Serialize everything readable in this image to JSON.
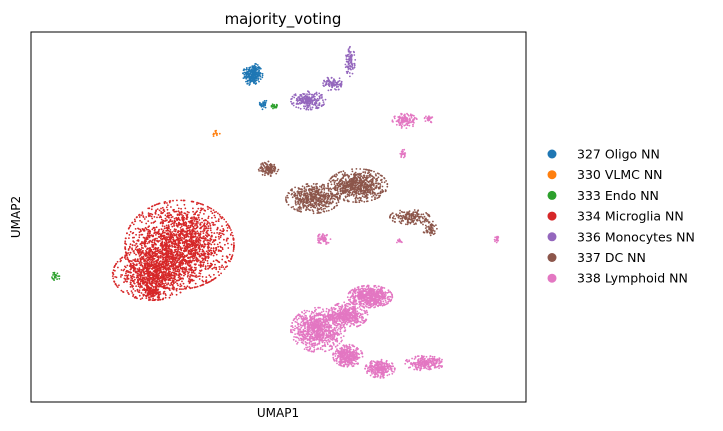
{
  "chart_data": {
    "type": "scatter",
    "title": "majority_voting",
    "xlabel": "UMAP1",
    "ylabel": "UMAP2",
    "grid": false,
    "legend_position": "right",
    "xlim": [
      0,
      100
    ],
    "ylim": [
      0,
      100
    ],
    "series": [
      {
        "name": "327 Oligo NN",
        "color": "#1f77b4",
        "clusters": [
          {
            "cx": 44.8,
            "cy": 88.5,
            "rx": 2.0,
            "ry": 3.0,
            "n": 260
          },
          {
            "cx": 47.0,
            "cy": 80.5,
            "rx": 0.8,
            "ry": 2.0,
            "n": 30
          }
        ]
      },
      {
        "name": "330 VLMC NN",
        "color": "#ff7f0e",
        "clusters": [
          {
            "cx": 37.3,
            "cy": 72.5,
            "rx": 0.9,
            "ry": 0.9,
            "n": 14
          }
        ]
      },
      {
        "name": "333 Endo NN",
        "color": "#2ca02c",
        "clusters": [
          {
            "cx": 49.2,
            "cy": 80.0,
            "rx": 1.0,
            "ry": 0.7,
            "n": 22
          },
          {
            "cx": 5.1,
            "cy": 34.0,
            "rx": 0.9,
            "ry": 1.2,
            "n": 20
          }
        ]
      },
      {
        "name": "334 Microglia NN",
        "color": "#d62728",
        "clusters": [
          {
            "cx": 30.0,
            "cy": 42.5,
            "rx": 11.0,
            "ry": 12.0,
            "n": 2000
          },
          {
            "cx": 24.5,
            "cy": 34.5,
            "rx": 8.0,
            "ry": 7.0,
            "n": 900
          },
          {
            "cx": 24.5,
            "cy": 29.5,
            "rx": 1.7,
            "ry": 2.0,
            "n": 100
          }
        ]
      },
      {
        "name": "336 Monocytes NN",
        "color": "#9467bd",
        "clusters": [
          {
            "cx": 56.0,
            "cy": 81.5,
            "rx": 3.5,
            "ry": 2.5,
            "n": 220
          },
          {
            "cx": 61.0,
            "cy": 86.0,
            "rx": 2.0,
            "ry": 2.0,
            "n": 90
          },
          {
            "cx": 64.5,
            "cy": 92.0,
            "rx": 1.0,
            "ry": 4.0,
            "n": 90
          }
        ]
      },
      {
        "name": "337 DC NN",
        "color": "#8c564b",
        "clusters": [
          {
            "cx": 57.0,
            "cy": 55.0,
            "rx": 5.5,
            "ry": 4.0,
            "n": 500
          },
          {
            "cx": 66.0,
            "cy": 58.5,
            "rx": 6.0,
            "ry": 4.5,
            "n": 700
          },
          {
            "cx": 48.0,
            "cy": 63.0,
            "rx": 2.0,
            "ry": 2.0,
            "n": 120
          },
          {
            "cx": 76.5,
            "cy": 50.0,
            "rx": 4.0,
            "ry": 2.0,
            "n": 180
          },
          {
            "cx": 80.5,
            "cy": 47.0,
            "rx": 1.5,
            "ry": 2.0,
            "n": 60
          }
        ]
      },
      {
        "name": "338 Lymphoid NN",
        "color": "#e377c2",
        "clusters": [
          {
            "cx": 58.0,
            "cy": 19.5,
            "rx": 5.5,
            "ry": 6.0,
            "n": 900
          },
          {
            "cx": 68.5,
            "cy": 28.5,
            "rx": 4.5,
            "ry": 3.0,
            "n": 600
          },
          {
            "cx": 64.0,
            "cy": 23.5,
            "rx": 4.0,
            "ry": 3.5,
            "n": 450
          },
          {
            "cx": 64.0,
            "cy": 12.5,
            "rx": 3.0,
            "ry": 3.0,
            "n": 380
          },
          {
            "cx": 70.5,
            "cy": 9.0,
            "rx": 3.0,
            "ry": 2.5,
            "n": 280
          },
          {
            "cx": 79.5,
            "cy": 10.5,
            "rx": 4.0,
            "ry": 2.0,
            "n": 250
          },
          {
            "cx": 75.5,
            "cy": 76.0,
            "rx": 2.5,
            "ry": 2.0,
            "n": 130
          },
          {
            "cx": 80.5,
            "cy": 76.5,
            "rx": 1.0,
            "ry": 1.0,
            "n": 30
          },
          {
            "cx": 59.0,
            "cy": 44.0,
            "rx": 1.5,
            "ry": 1.5,
            "n": 60
          },
          {
            "cx": 94.2,
            "cy": 44.0,
            "rx": 0.6,
            "ry": 0.9,
            "n": 20
          },
          {
            "cx": 75.3,
            "cy": 67.0,
            "rx": 0.7,
            "ry": 1.2,
            "n": 25
          },
          {
            "cx": 74.5,
            "cy": 43.5,
            "rx": 0.7,
            "ry": 0.7,
            "n": 15
          }
        ]
      }
    ]
  }
}
